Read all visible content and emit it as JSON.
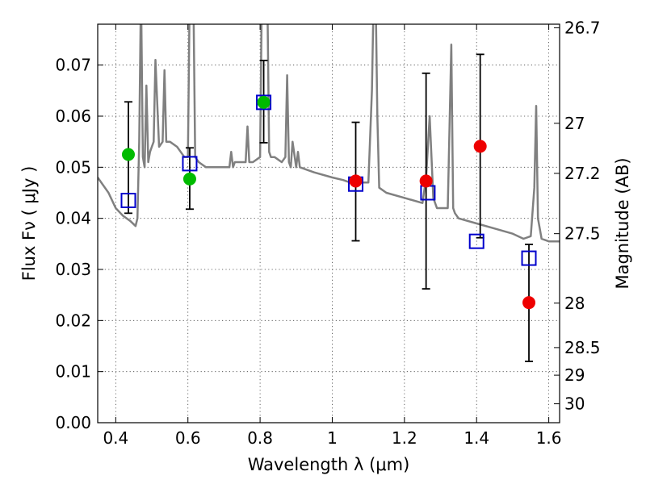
{
  "chart_data": {
    "type": "scatter",
    "xlabel": "Wavelength  λ (μm)",
    "ylabel": "Flux  Fν  ( μJy )",
    "y2label": "Magnitude (AB)",
    "xlim": [
      0.35,
      1.63
    ],
    "ylim": [
      0.0,
      0.078
    ],
    "grid": true,
    "x_ticks": [
      0.4,
      0.6,
      0.8,
      1.0,
      1.2,
      1.4,
      1.6
    ],
    "x_tick_labels": [
      "0.4",
      "0.6",
      "0.8",
      "1",
      "1.2",
      "1.4",
      "1.6"
    ],
    "y_ticks": [
      0.0,
      0.01,
      0.02,
      0.03,
      0.04,
      0.05,
      0.06,
      0.07
    ],
    "y_tick_labels": [
      "0.00",
      "0.01",
      "0.02",
      "0.03",
      "0.04",
      "0.05",
      "0.06",
      "0.07"
    ],
    "y2_ticks": [
      {
        "label": "26.7",
        "flux": 0.0773
      },
      {
        "label": "27",
        "flux": 0.0586
      },
      {
        "label": "27.2",
        "flux": 0.0488
      },
      {
        "label": "27.5",
        "flux": 0.037
      },
      {
        "label": "28",
        "flux": 0.0234
      },
      {
        "label": "28.5",
        "flux": 0.0147
      },
      {
        "label": "29",
        "flux": 0.0093
      },
      {
        "label": "30",
        "flux": 0.0037
      }
    ],
    "series": [
      {
        "name": "model SED",
        "kind": "line",
        "color": "#808080",
        "x": [
          0.35,
          0.38,
          0.4,
          0.42,
          0.44,
          0.455,
          0.46,
          0.465,
          0.47,
          0.475,
          0.48,
          0.485,
          0.49,
          0.495,
          0.5,
          0.505,
          0.51,
          0.52,
          0.53,
          0.535,
          0.54,
          0.55,
          0.57,
          0.58,
          0.59,
          0.6,
          0.605,
          0.61,
          0.615,
          0.62,
          0.63,
          0.65,
          0.7,
          0.715,
          0.72,
          0.725,
          0.73,
          0.76,
          0.765,
          0.77,
          0.78,
          0.8,
          0.805,
          0.81,
          0.815,
          0.82,
          0.825,
          0.83,
          0.84,
          0.86,
          0.87,
          0.875,
          0.88,
          0.885,
          0.89,
          0.9,
          0.905,
          0.91,
          0.95,
          1.0,
          1.03,
          1.05,
          1.08,
          1.1,
          1.11,
          1.115,
          1.12,
          1.125,
          1.13,
          1.15,
          1.2,
          1.25,
          1.26,
          1.27,
          1.28,
          1.29,
          1.3,
          1.32,
          1.33,
          1.335,
          1.34,
          1.35,
          1.4,
          1.45,
          1.5,
          1.53,
          1.55,
          1.56,
          1.565,
          1.57,
          1.58,
          1.6,
          1.63
        ],
        "y": [
          0.048,
          0.045,
          0.042,
          0.0405,
          0.0395,
          0.0385,
          0.04,
          0.055,
          0.085,
          0.052,
          0.05,
          0.066,
          0.051,
          0.053,
          0.054,
          0.055,
          0.071,
          0.054,
          0.055,
          0.069,
          0.055,
          0.055,
          0.054,
          0.053,
          0.052,
          0.052,
          0.085,
          0.085,
          0.085,
          0.052,
          0.051,
          0.05,
          0.05,
          0.05,
          0.053,
          0.05,
          0.051,
          0.051,
          0.058,
          0.051,
          0.051,
          0.052,
          0.085,
          0.085,
          0.085,
          0.085,
          0.053,
          0.052,
          0.052,
          0.051,
          0.052,
          0.068,
          0.051,
          0.05,
          0.055,
          0.05,
          0.053,
          0.05,
          0.049,
          0.048,
          0.0475,
          0.047,
          0.047,
          0.047,
          0.065,
          0.085,
          0.085,
          0.06,
          0.046,
          0.045,
          0.044,
          0.043,
          0.048,
          0.06,
          0.044,
          0.042,
          0.042,
          0.042,
          0.074,
          0.042,
          0.041,
          0.04,
          0.039,
          0.038,
          0.037,
          0.036,
          0.0365,
          0.046,
          0.062,
          0.04,
          0.036,
          0.0355,
          0.0355
        ]
      },
      {
        "name": "model photometry",
        "kind": "open-square",
        "color": "#0000cc",
        "x": [
          0.435,
          0.605,
          0.81,
          1.065,
          1.265,
          1.4,
          1.545
        ],
        "y": [
          0.0435,
          0.0507,
          0.0627,
          0.0467,
          0.045,
          0.0355,
          0.0322
        ]
      },
      {
        "name": "detections",
        "kind": "filled-circle",
        "color": "#00bb00",
        "x": [
          0.435,
          0.605,
          0.81
        ],
        "y": [
          0.0525,
          0.0477,
          0.0627
        ]
      },
      {
        "name": "upper limits",
        "kind": "filled-circle",
        "color": "#ee0000",
        "x": [
          1.065,
          1.26,
          1.41,
          1.545
        ],
        "y": [
          0.0473,
          0.0473,
          0.0541,
          0.0235
        ]
      }
    ],
    "error_bars": [
      {
        "x": 0.435,
        "low": 0.041,
        "high": 0.0628
      },
      {
        "x": 0.605,
        "low": 0.0418,
        "high": 0.0538
      },
      {
        "x": 0.81,
        "low": 0.0548,
        "high": 0.0709
      },
      {
        "x": 1.065,
        "low": 0.0356,
        "high": 0.0588
      },
      {
        "x": 1.26,
        "low": 0.0262,
        "high": 0.0684
      },
      {
        "x": 1.41,
        "low": 0.0362,
        "high": 0.0721
      },
      {
        "x": 1.545,
        "low": 0.012,
        "high": 0.0349
      }
    ]
  }
}
